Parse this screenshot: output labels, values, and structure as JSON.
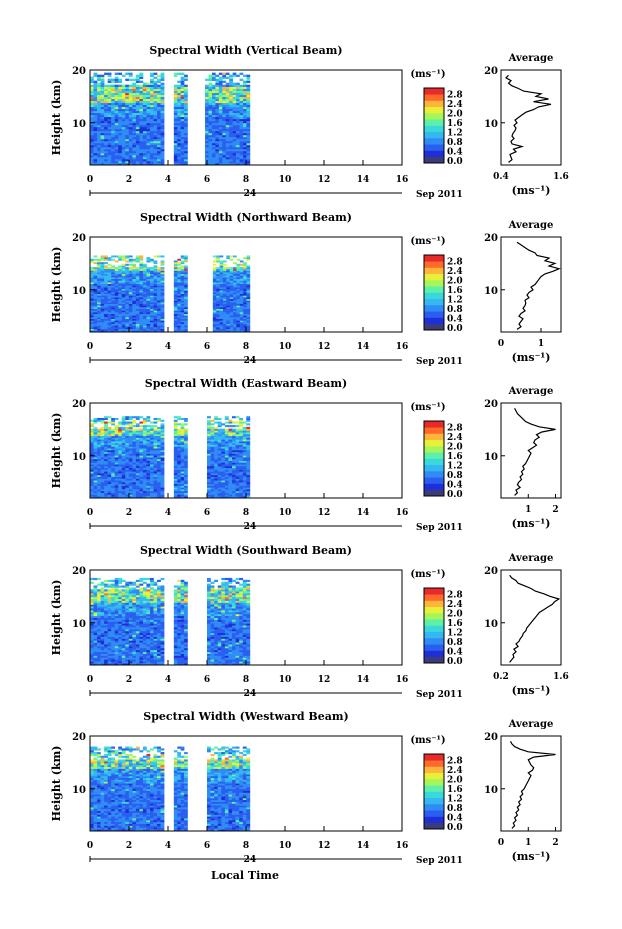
{
  "figure": {
    "xlabel": "Local Time",
    "date_label": "24",
    "date_suffix": "Sep 2011"
  },
  "colors": {
    "scale": [
      "#3b3b78",
      "#1e2fd8",
      "#2a5ef0",
      "#2f8cf5",
      "#35b7f2",
      "#3ad8dc",
      "#5cf0a8",
      "#a6f55a",
      "#e8f03a",
      "#ffb43a",
      "#ff6a2a",
      "#e82a2a"
    ],
    "line": "#000000"
  },
  "chart_data": [
    {
      "type": "heatmap",
      "title": "Spectral Width (Vertical Beam)",
      "ylabel": "Height (km)",
      "xlim": [
        0,
        16
      ],
      "ylim": [
        2,
        20
      ],
      "xticks": [
        "0",
        "2",
        "4",
        "6",
        "8",
        "10",
        "12",
        "14",
        "16"
      ],
      "yticks": [
        "10",
        "20"
      ],
      "colorbar": {
        "unit": "(ms⁻¹)",
        "ticks": [
          "0.0",
          "0.4",
          "0.8",
          "1.2",
          "1.6",
          "2.0",
          "2.4",
          "2.8"
        ],
        "range": [
          0,
          3.0
        ]
      },
      "data_segments": [
        [
          0,
          3.8
        ],
        [
          4.3,
          5.0
        ],
        [
          5.9,
          8.2
        ]
      ],
      "top_km": 19.5,
      "profile": {
        "title": "Average",
        "unit": "(ms⁻¹)",
        "xlim": [
          0.4,
          1.6
        ],
        "xticks": [
          "0.4",
          "1.6"
        ],
        "values": [
          [
            2.5,
            0.55
          ],
          [
            3,
            0.62
          ],
          [
            3.5,
            0.6
          ],
          [
            4,
            0.58
          ],
          [
            4.5,
            0.7
          ],
          [
            5,
            0.65
          ],
          [
            5.5,
            0.82
          ],
          [
            6,
            0.62
          ],
          [
            6.5,
            0.6
          ],
          [
            7,
            0.66
          ],
          [
            7.5,
            0.62
          ],
          [
            8,
            0.64
          ],
          [
            8.5,
            0.68
          ],
          [
            9,
            0.7
          ],
          [
            9.5,
            0.66
          ],
          [
            10,
            0.72
          ],
          [
            10.5,
            0.68
          ],
          [
            11,
            0.75
          ],
          [
            11.5,
            0.82
          ],
          [
            12,
            0.9
          ],
          [
            12.5,
            1.05
          ],
          [
            13,
            1.15
          ],
          [
            13.5,
            1.4
          ],
          [
            14,
            1.05
          ],
          [
            14.5,
            1.35
          ],
          [
            15,
            1.1
          ],
          [
            15.5,
            1.2
          ],
          [
            16,
            0.85
          ],
          [
            16.5,
            0.75
          ],
          [
            17,
            0.62
          ],
          [
            17.5,
            0.55
          ],
          [
            18,
            0.6
          ],
          [
            18.5,
            0.5
          ],
          [
            19,
            0.55
          ]
        ]
      }
    },
    {
      "type": "heatmap",
      "title": "Spectral Width (Northward Beam)",
      "ylabel": "Height (km)",
      "xlim": [
        0,
        16
      ],
      "ylim": [
        2,
        20
      ],
      "xticks": [
        "0",
        "2",
        "4",
        "6",
        "8",
        "10",
        "12",
        "14",
        "16"
      ],
      "yticks": [
        "10",
        "20"
      ],
      "colorbar": {
        "unit": "(ms⁻¹)",
        "ticks": [
          "0.0",
          "0.4",
          "0.8",
          "1.2",
          "1.6",
          "2.0",
          "2.4",
          "2.8"
        ],
        "range": [
          0,
          3.0
        ]
      },
      "data_segments": [
        [
          0,
          3.8
        ],
        [
          4.3,
          5.0
        ],
        [
          6.3,
          8.2
        ]
      ],
      "top_km": 16.5,
      "profile": {
        "title": "Average",
        "unit": "(ms⁻¹)",
        "xlim": [
          0,
          1.5
        ],
        "xticks": [
          "0",
          "1"
        ],
        "values": [
          [
            2.5,
            0.4
          ],
          [
            3,
            0.5
          ],
          [
            3.5,
            0.45
          ],
          [
            4,
            0.5
          ],
          [
            4.5,
            0.55
          ],
          [
            5,
            0.45
          ],
          [
            5.5,
            0.5
          ],
          [
            6,
            0.6
          ],
          [
            6.5,
            0.55
          ],
          [
            7,
            0.6
          ],
          [
            7.5,
            0.62
          ],
          [
            8,
            0.6
          ],
          [
            8.5,
            0.7
          ],
          [
            9,
            0.65
          ],
          [
            9.5,
            0.7
          ],
          [
            10,
            0.8
          ],
          [
            10.5,
            0.75
          ],
          [
            11,
            0.85
          ],
          [
            11.5,
            0.9
          ],
          [
            12,
            0.95
          ],
          [
            12.5,
            1.0
          ],
          [
            13,
            1.1
          ],
          [
            13.5,
            1.3
          ],
          [
            14,
            1.45
          ],
          [
            14.5,
            1.2
          ],
          [
            15,
            1.35
          ],
          [
            15.5,
            1.1
          ],
          [
            16,
            1.2
          ],
          [
            16.5,
            0.9
          ],
          [
            17,
            0.85
          ],
          [
            17.5,
            0.7
          ],
          [
            18,
            0.6
          ],
          [
            18.5,
            0.5
          ],
          [
            19,
            0.4
          ]
        ]
      }
    },
    {
      "type": "heatmap",
      "title": "Spectral Width (Eastward Beam)",
      "ylabel": "Height (km)",
      "xlim": [
        0,
        16
      ],
      "ylim": [
        2,
        20
      ],
      "xticks": [
        "0",
        "2",
        "4",
        "6",
        "8",
        "10",
        "12",
        "14",
        "16"
      ],
      "yticks": [
        "10",
        "20"
      ],
      "colorbar": {
        "unit": "(ms⁻¹)",
        "ticks": [
          "0.0",
          "0.4",
          "0.8",
          "1.2",
          "1.6",
          "2.0",
          "2.4",
          "2.8"
        ],
        "range": [
          0,
          3.0
        ]
      },
      "data_segments": [
        [
          0,
          3.8
        ],
        [
          4.3,
          5.0
        ],
        [
          6.0,
          8.2
        ]
      ],
      "top_km": 17.5,
      "profile": {
        "title": "Average",
        "unit": "(ms⁻¹)",
        "xlim": [
          0,
          2.2
        ],
        "xticks": [
          "1",
          "2"
        ],
        "values": [
          [
            2.5,
            0.5
          ],
          [
            3,
            0.6
          ],
          [
            3.5,
            0.55
          ],
          [
            4,
            0.7
          ],
          [
            4.5,
            0.6
          ],
          [
            5,
            0.65
          ],
          [
            5.5,
            0.75
          ],
          [
            6,
            0.7
          ],
          [
            6.5,
            0.8
          ],
          [
            7,
            0.75
          ],
          [
            7.5,
            0.85
          ],
          [
            8,
            0.8
          ],
          [
            8.5,
            0.9
          ],
          [
            9,
            0.95
          ],
          [
            9.5,
            1.0
          ],
          [
            10,
            1.05
          ],
          [
            10.5,
            1.1
          ],
          [
            11,
            1.0
          ],
          [
            11.5,
            1.15
          ],
          [
            12,
            1.3
          ],
          [
            12.5,
            1.2
          ],
          [
            13,
            1.25
          ],
          [
            13.5,
            1.4
          ],
          [
            14,
            1.3
          ],
          [
            14.5,
            1.5
          ],
          [
            15,
            2.0
          ],
          [
            15.5,
            1.4
          ],
          [
            16,
            1.1
          ],
          [
            16.5,
            0.9
          ],
          [
            17,
            0.8
          ],
          [
            17.5,
            0.7
          ],
          [
            18,
            0.6
          ],
          [
            18.5,
            0.55
          ],
          [
            19,
            0.5
          ]
        ]
      }
    },
    {
      "type": "heatmap",
      "title": "Spectral Width (Southward Beam)",
      "ylabel": "Height (km)",
      "xlim": [
        0,
        16
      ],
      "ylim": [
        2,
        20
      ],
      "xticks": [
        "0",
        "2",
        "4",
        "6",
        "8",
        "10",
        "12",
        "14",
        "16"
      ],
      "yticks": [
        "10",
        "20"
      ],
      "colorbar": {
        "unit": "(ms⁻¹)",
        "ticks": [
          "0.0",
          "0.4",
          "0.8",
          "1.2",
          "1.6",
          "2.0",
          "2.4",
          "2.8"
        ],
        "range": [
          0,
          3.0
        ]
      },
      "data_segments": [
        [
          0,
          3.8
        ],
        [
          4.3,
          5.0
        ],
        [
          6.0,
          8.2
        ]
      ],
      "top_km": 18.5,
      "profile": {
        "title": "Average",
        "unit": "(ms⁻¹)",
        "xlim": [
          0.2,
          1.6
        ],
        "xticks": [
          "0.2",
          "1.6"
        ],
        "values": [
          [
            2.5,
            0.4
          ],
          [
            3,
            0.45
          ],
          [
            3.5,
            0.5
          ],
          [
            4,
            0.48
          ],
          [
            4.5,
            0.55
          ],
          [
            5,
            0.5
          ],
          [
            5.5,
            0.6
          ],
          [
            6,
            0.55
          ],
          [
            6.5,
            0.62
          ],
          [
            7,
            0.65
          ],
          [
            7.5,
            0.7
          ],
          [
            8,
            0.72
          ],
          [
            8.5,
            0.78
          ],
          [
            9,
            0.8
          ],
          [
            9.5,
            0.85
          ],
          [
            10,
            0.9
          ],
          [
            10.5,
            0.95
          ],
          [
            11,
            1.0
          ],
          [
            11.5,
            1.05
          ],
          [
            12,
            1.1
          ],
          [
            12.5,
            1.2
          ],
          [
            13,
            1.3
          ],
          [
            13.5,
            1.4
          ],
          [
            14,
            1.45
          ],
          [
            14.5,
            1.55
          ],
          [
            15,
            1.35
          ],
          [
            15.5,
            1.2
          ],
          [
            16,
            1.0
          ],
          [
            16.5,
            0.9
          ],
          [
            17,
            0.75
          ],
          [
            17.5,
            0.6
          ],
          [
            18,
            0.55
          ],
          [
            18.5,
            0.45
          ],
          [
            19,
            0.4
          ]
        ]
      }
    },
    {
      "type": "heatmap",
      "title": "Spectral Width (Westward Beam)",
      "ylabel": "Height (km)",
      "xlim": [
        0,
        16
      ],
      "ylim": [
        2,
        20
      ],
      "xticks": [
        "0",
        "2",
        "4",
        "6",
        "8",
        "10",
        "12",
        "14",
        "16"
      ],
      "yticks": [
        "10",
        "20"
      ],
      "colorbar": {
        "unit": "(ms⁻¹)",
        "ticks": [
          "0.0",
          "0.4",
          "0.8",
          "1.2",
          "1.6",
          "2.0",
          "2.4",
          "2.8"
        ],
        "range": [
          0,
          3.0
        ]
      },
      "data_segments": [
        [
          0,
          3.8
        ],
        [
          4.3,
          5.0
        ],
        [
          6.0,
          8.2
        ]
      ],
      "top_km": 18.0,
      "profile": {
        "title": "Average",
        "unit": "(ms⁻¹)",
        "xlim": [
          0,
          2.2
        ],
        "xticks": [
          "0",
          "1",
          "2"
        ],
        "values": [
          [
            2.5,
            0.4
          ],
          [
            3,
            0.5
          ],
          [
            3.5,
            0.45
          ],
          [
            4,
            0.55
          ],
          [
            4.5,
            0.5
          ],
          [
            5,
            0.6
          ],
          [
            5.5,
            0.55
          ],
          [
            6,
            0.65
          ],
          [
            6.5,
            0.6
          ],
          [
            7,
            0.7
          ],
          [
            7.5,
            0.65
          ],
          [
            8,
            0.75
          ],
          [
            8.5,
            0.7
          ],
          [
            9,
            0.8
          ],
          [
            9.5,
            0.75
          ],
          [
            10,
            0.85
          ],
          [
            10.5,
            0.9
          ],
          [
            11,
            0.95
          ],
          [
            11.5,
            1.0
          ],
          [
            12,
            1.05
          ],
          [
            12.5,
            1.1
          ],
          [
            13,
            1.0
          ],
          [
            13.5,
            1.15
          ],
          [
            14,
            1.2
          ],
          [
            14.5,
            1.1
          ],
          [
            15,
            1.05
          ],
          [
            15.5,
            1.0
          ],
          [
            16,
            1.2
          ],
          [
            16.5,
            2.0
          ],
          [
            17,
            1.0
          ],
          [
            17.5,
            0.7
          ],
          [
            18,
            0.5
          ],
          [
            18.5,
            0.4
          ],
          [
            19,
            0.35
          ]
        ]
      }
    }
  ]
}
